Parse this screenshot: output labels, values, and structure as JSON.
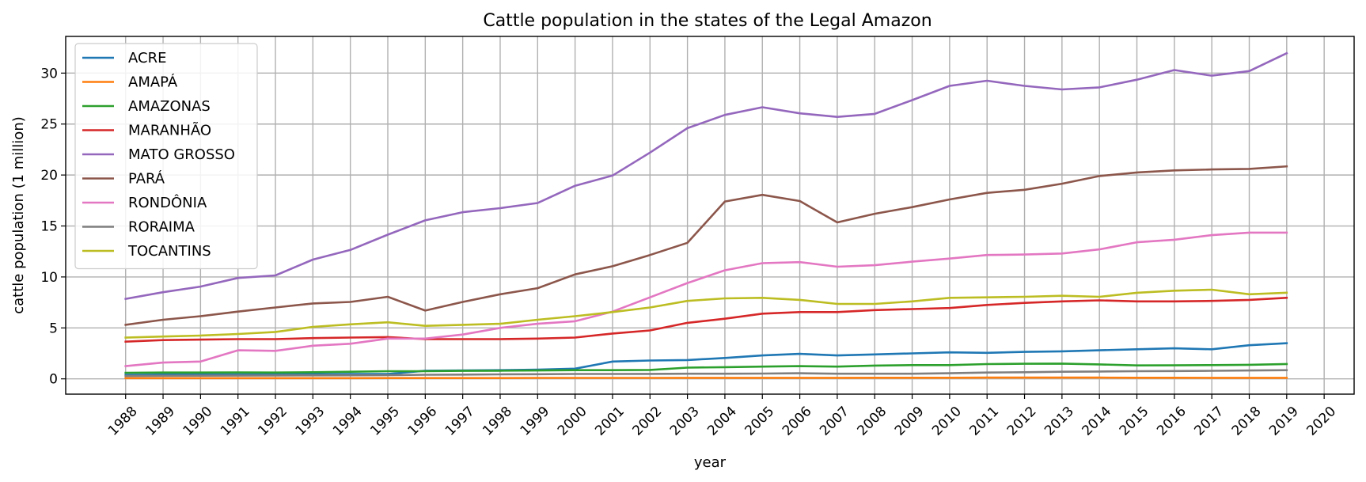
{
  "chart_data": {
    "type": "line",
    "title": "Cattle population in the states of the Legal Amazon",
    "xlabel": "year",
    "ylabel": "cattle population (1 million)",
    "x_ticks": [
      1988,
      1989,
      1990,
      1991,
      1992,
      1993,
      1994,
      1995,
      1996,
      1997,
      1998,
      1999,
      2000,
      2001,
      2002,
      2003,
      2004,
      2005,
      2006,
      2007,
      2008,
      2009,
      2010,
      2011,
      2012,
      2013,
      2014,
      2015,
      2016,
      2017,
      2018,
      2019,
      2020
    ],
    "y_ticks": [
      0,
      5,
      10,
      15,
      20,
      25,
      30
    ],
    "xlim": [
      1986.4,
      2020.8
    ],
    "ylim": [
      -1.5,
      33.6
    ],
    "grid": true,
    "legend_position": "upper-left",
    "x": [
      1988,
      1989,
      1990,
      1991,
      1992,
      1993,
      1994,
      1995,
      1996,
      1997,
      1998,
      1999,
      2000,
      2001,
      2002,
      2003,
      2004,
      2005,
      2006,
      2007,
      2008,
      2009,
      2010,
      2011,
      2012,
      2013,
      2014,
      2015,
      2016,
      2017,
      2018,
      2019
    ],
    "series": [
      {
        "name": "ACRE",
        "color": "#1f77b4",
        "values": [
          0.4,
          0.42,
          0.43,
          0.44,
          0.45,
          0.46,
          0.47,
          0.47,
          0.8,
          0.82,
          0.85,
          0.9,
          1.0,
          1.7,
          1.8,
          1.85,
          2.05,
          2.3,
          2.45,
          2.3,
          2.4,
          2.5,
          2.6,
          2.55,
          2.65,
          2.7,
          2.8,
          2.9,
          3.0,
          2.9,
          3.3,
          3.5
        ]
      },
      {
        "name": "AMAPÁ",
        "color": "#ff7f0e",
        "values": [
          0.07,
          0.07,
          0.07,
          0.07,
          0.07,
          0.07,
          0.07,
          0.08,
          0.08,
          0.08,
          0.08,
          0.09,
          0.09,
          0.09,
          0.09,
          0.1,
          0.1,
          0.1,
          0.1,
          0.1,
          0.11,
          0.11,
          0.11,
          0.12,
          0.12,
          0.12,
          0.12,
          0.11,
          0.11,
          0.1,
          0.1,
          0.1
        ]
      },
      {
        "name": "AMAZONAS",
        "color": "#2ca02c",
        "values": [
          0.6,
          0.62,
          0.62,
          0.63,
          0.62,
          0.65,
          0.7,
          0.75,
          0.75,
          0.78,
          0.8,
          0.82,
          0.85,
          0.85,
          0.88,
          1.1,
          1.15,
          1.2,
          1.25,
          1.2,
          1.3,
          1.35,
          1.35,
          1.45,
          1.48,
          1.5,
          1.42,
          1.32,
          1.33,
          1.35,
          1.38,
          1.45
        ]
      },
      {
        "name": "MARANHÃO",
        "color": "#d62728",
        "values": [
          3.65,
          3.8,
          3.85,
          3.9,
          3.9,
          4.0,
          4.05,
          4.1,
          3.9,
          3.9,
          3.9,
          3.95,
          4.05,
          4.45,
          4.75,
          5.5,
          5.9,
          6.4,
          6.55,
          6.55,
          6.75,
          6.85,
          6.95,
          7.25,
          7.45,
          7.6,
          7.7,
          7.6,
          7.6,
          7.65,
          7.75,
          7.95
        ]
      },
      {
        "name": "MATO GROSSO",
        "color": "#9467bd",
        "values": [
          7.85,
          8.5,
          9.05,
          9.9,
          10.15,
          11.7,
          12.65,
          14.15,
          15.55,
          16.35,
          16.75,
          17.25,
          18.95,
          19.95,
          22.2,
          24.6,
          25.9,
          26.65,
          26.05,
          25.7,
          26.0,
          27.35,
          28.75,
          29.25,
          28.75,
          28.4,
          28.6,
          29.35,
          30.3,
          29.75,
          30.2,
          31.95
        ]
      },
      {
        "name": "PARÁ",
        "color": "#8c564b",
        "values": [
          5.3,
          5.8,
          6.15,
          6.6,
          7.0,
          7.4,
          7.55,
          8.05,
          6.7,
          7.55,
          8.3,
          8.9,
          10.25,
          11.05,
          12.15,
          13.35,
          17.4,
          18.05,
          17.45,
          15.35,
          16.2,
          16.85,
          17.6,
          18.25,
          18.55,
          19.15,
          19.9,
          20.25,
          20.45,
          20.55,
          20.6,
          20.85
        ]
      },
      {
        "name": "RONDÔNIA",
        "color": "#e377c2",
        "values": [
          1.25,
          1.6,
          1.7,
          2.8,
          2.75,
          3.25,
          3.45,
          3.95,
          3.95,
          4.35,
          5.0,
          5.4,
          5.65,
          6.6,
          8.0,
          9.4,
          10.65,
          11.35,
          11.45,
          11.0,
          11.15,
          11.5,
          11.8,
          12.15,
          12.2,
          12.3,
          12.7,
          13.4,
          13.65,
          14.1,
          14.35,
          14.35
        ]
      },
      {
        "name": "RORAIMA",
        "color": "#7f7f7f",
        "values": [
          0.28,
          0.3,
          0.31,
          0.32,
          0.33,
          0.34,
          0.35,
          0.36,
          0.4,
          0.42,
          0.44,
          0.46,
          0.48,
          0.48,
          0.49,
          0.5,
          0.5,
          0.52,
          0.55,
          0.5,
          0.5,
          0.5,
          0.55,
          0.62,
          0.65,
          0.7,
          0.72,
          0.75,
          0.77,
          0.79,
          0.82,
          0.85
        ]
      },
      {
        "name": "TOCANTINS",
        "color": "#bcbd22",
        "values": [
          4.05,
          4.15,
          4.25,
          4.4,
          4.6,
          5.1,
          5.35,
          5.55,
          5.2,
          5.3,
          5.4,
          5.8,
          6.15,
          6.55,
          7.0,
          7.65,
          7.9,
          7.95,
          7.75,
          7.35,
          7.35,
          7.6,
          7.95,
          8.0,
          8.05,
          8.15,
          8.05,
          8.45,
          8.65,
          8.75,
          8.3,
          8.45
        ]
      }
    ]
  }
}
